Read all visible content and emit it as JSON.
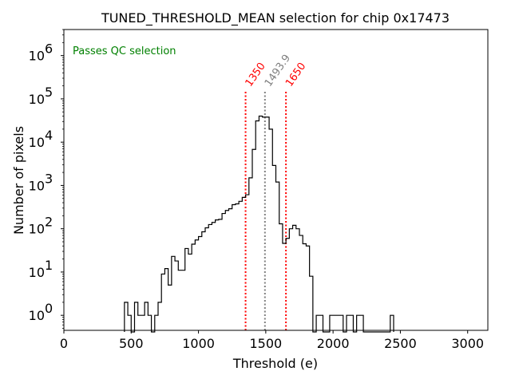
{
  "chart_data": {
    "type": "histogram",
    "title": "TUNED_THRESHOLD_MEAN selection for chip 0x17473",
    "xlabel": "Threshold (e)",
    "ylabel": "Number of pixels",
    "xlim": [
      0,
      3150
    ],
    "ylim": [
      0.45,
      4000000
    ],
    "yscale": "log",
    "bin_width": 25,
    "x_ticks": [
      0,
      500,
      1000,
      1500,
      2000,
      2500,
      3000
    ],
    "x_tick_labels": [
      "0",
      "500",
      "1000",
      "1500",
      "2000",
      "2500",
      "3000"
    ],
    "y_ticks": [
      1,
      10,
      100,
      1000,
      10000,
      100000,
      1000000
    ],
    "y_tick_labels": [
      {
        "base": "10",
        "exp": "0"
      },
      {
        "base": "10",
        "exp": "1"
      },
      {
        "base": "10",
        "exp": "2"
      },
      {
        "base": "10",
        "exp": "3"
      },
      {
        "base": "10",
        "exp": "4"
      },
      {
        "base": "10",
        "exp": "5"
      },
      {
        "base": "10",
        "exp": "6"
      }
    ],
    "bins": [
      [
        450,
        2
      ],
      [
        475,
        1
      ],
      [
        500,
        0
      ],
      [
        525,
        2
      ],
      [
        550,
        1
      ],
      [
        575,
        1
      ],
      [
        600,
        2
      ],
      [
        625,
        1
      ],
      [
        650,
        0
      ],
      [
        675,
        1
      ],
      [
        700,
        2
      ],
      [
        725,
        9
      ],
      [
        750,
        12
      ],
      [
        775,
        5
      ],
      [
        800,
        23
      ],
      [
        825,
        18
      ],
      [
        850,
        11
      ],
      [
        875,
        11
      ],
      [
        900,
        35
      ],
      [
        925,
        26
      ],
      [
        950,
        44
      ],
      [
        975,
        55
      ],
      [
        1000,
        66
      ],
      [
        1025,
        85
      ],
      [
        1050,
        105
      ],
      [
        1075,
        125
      ],
      [
        1100,
        140
      ],
      [
        1125,
        160
      ],
      [
        1150,
        165
      ],
      [
        1175,
        225
      ],
      [
        1200,
        265
      ],
      [
        1225,
        290
      ],
      [
        1250,
        360
      ],
      [
        1275,
        375
      ],
      [
        1300,
        430
      ],
      [
        1325,
        530
      ],
      [
        1350,
        610
      ],
      [
        1375,
        1500
      ],
      [
        1400,
        6800
      ],
      [
        1425,
        31000
      ],
      [
        1450,
        40000
      ],
      [
        1475,
        38000
      ],
      [
        1500,
        38000
      ],
      [
        1525,
        20000
      ],
      [
        1550,
        2900
      ],
      [
        1575,
        1200
      ],
      [
        1600,
        130
      ],
      [
        1625,
        46
      ],
      [
        1650,
        60
      ],
      [
        1675,
        100
      ],
      [
        1700,
        120
      ],
      [
        1725,
        100
      ],
      [
        1750,
        70
      ],
      [
        1775,
        45
      ],
      [
        1800,
        40
      ],
      [
        1825,
        8
      ],
      [
        1850,
        0
      ],
      [
        1875,
        1
      ],
      [
        1900,
        1
      ],
      [
        1925,
        0
      ],
      [
        1950,
        0
      ],
      [
        1975,
        1
      ],
      [
        2000,
        1
      ],
      [
        2025,
        1
      ],
      [
        2050,
        1
      ],
      [
        2075,
        0
      ],
      [
        2100,
        1
      ],
      [
        2125,
        1
      ],
      [
        2150,
        0
      ],
      [
        2175,
        1
      ],
      [
        2200,
        1
      ],
      [
        2225,
        0
      ],
      [
        2250,
        0
      ],
      [
        2275,
        0
      ],
      [
        2300,
        0
      ],
      [
        2325,
        0
      ],
      [
        2350,
        0
      ],
      [
        2375,
        0
      ],
      [
        2400,
        0
      ],
      [
        2425,
        1
      ]
    ],
    "vlines": [
      {
        "x": 1350,
        "label": "1350",
        "color": "#ff0000"
      },
      {
        "x": 1493.9,
        "label": "1493.9",
        "color": "#808080"
      },
      {
        "x": 1650,
        "label": "1650",
        "color": "#ff0000"
      }
    ],
    "annotation": {
      "text": "Passes QC selection",
      "color": "#008000"
    }
  }
}
